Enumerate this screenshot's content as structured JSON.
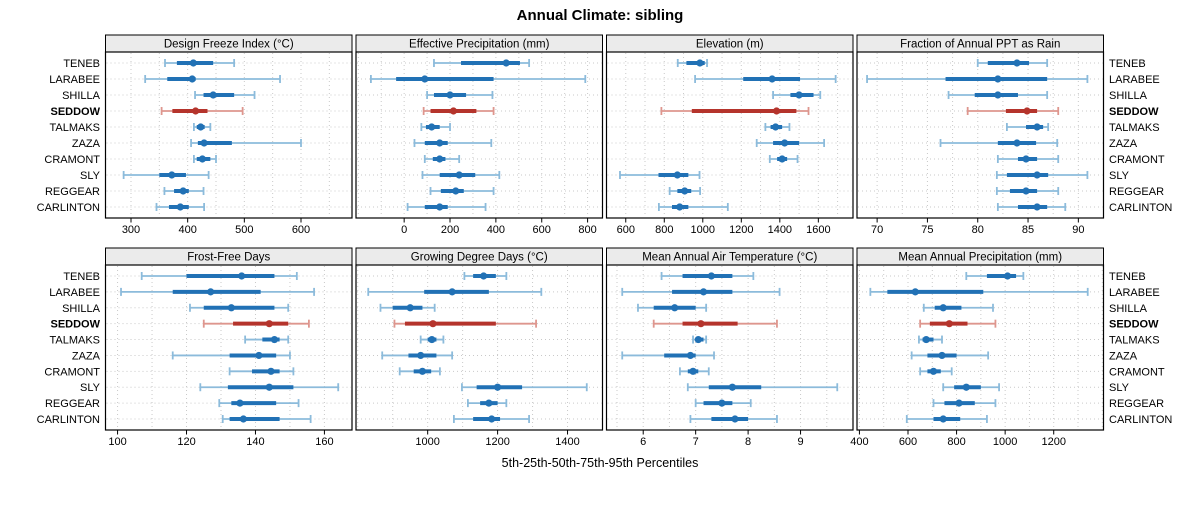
{
  "figure": {
    "title": "Annual Climate: sibling",
    "caption": "5th-25th-50th-75th-95th Percentiles"
  },
  "colors": {
    "series_main": "#2171B5",
    "series_light": "#8CBBDB",
    "highlight_main": "#B5342C",
    "highlight_light": "#DE968E",
    "gridline": "#C9C9C9",
    "strip_fill": "#EBEBEB",
    "panel_border": "#000000",
    "text": "#000000"
  },
  "chart_data": {
    "type": "trellis-percentile-dotplot",
    "percentiles": [
      5,
      25,
      50,
      75,
      95
    ],
    "categories": [
      "TENEB",
      "LARABEE",
      "SHILLA",
      "SEDDOW",
      "TALMAKS",
      "ZAZA",
      "CRAMONT",
      "SLY",
      "REGGEAR",
      "CARLINTON"
    ],
    "highlight_category": "SEDDOW",
    "legend": "none",
    "grid": "dotted",
    "panels": [
      {
        "id": "design-freeze-index",
        "title": "Design Freeze Index (°C)",
        "row": 0,
        "col": 0,
        "xlim": [
          255,
          690
        ],
        "ticks": [
          300,
          400,
          500,
          600
        ],
        "values": {
          "TENEB": [
            360,
            381,
            410,
            445,
            482
          ],
          "LARABEE": [
            325,
            364,
            408,
            414,
            563
          ],
          "SHILLA": [
            413,
            428,
            445,
            482,
            518
          ],
          "SEDDOW": [
            354,
            373,
            414,
            435,
            497
          ],
          "TALMAKS": [
            411,
            416,
            423,
            430,
            440
          ],
          "ZAZA": [
            406,
            418,
            429,
            478,
            600
          ],
          "CRAMONT": [
            411,
            416,
            426,
            440,
            450
          ],
          "SLY": [
            287,
            350,
            372,
            397,
            437
          ],
          "REGGEAR": [
            359,
            376,
            392,
            402,
            428
          ],
          "CARLINTON": [
            345,
            367,
            387,
            402,
            429
          ]
        }
      },
      {
        "id": "effective-precipitation",
        "title": "Effective Precipitation (mm)",
        "row": 0,
        "col": 1,
        "xlim": [
          -210,
          865
        ],
        "ticks": [
          0,
          200,
          400,
          600,
          800
        ],
        "values": {
          "TENEB": [
            130,
            248,
            445,
            505,
            545
          ],
          "LARABEE": [
            -145,
            -35,
            90,
            390,
            790
          ],
          "SHILLA": [
            100,
            130,
            200,
            270,
            385
          ],
          "SEDDOW": [
            85,
            115,
            215,
            315,
            390
          ],
          "TALMAKS": [
            75,
            95,
            120,
            155,
            200
          ],
          "ZAZA": [
            45,
            90,
            155,
            190,
            380
          ],
          "CRAMONT": [
            90,
            125,
            155,
            180,
            240
          ],
          "SLY": [
            80,
            155,
            240,
            310,
            415
          ],
          "REGGEAR": [
            115,
            160,
            225,
            260,
            390
          ],
          "CARLINTON": [
            15,
            90,
            155,
            190,
            355
          ]
        }
      },
      {
        "id": "elevation",
        "title": "Elevation (m)",
        "row": 0,
        "col": 2,
        "xlim": [
          500,
          1780
        ],
        "ticks": [
          600,
          800,
          1000,
          1200,
          1400,
          1600
        ],
        "values": {
          "TENEB": [
            870,
            915,
            985,
            1010,
            1022
          ],
          "LARABEE": [
            960,
            1210,
            1360,
            1505,
            1690
          ],
          "SHILLA": [
            1365,
            1455,
            1500,
            1575,
            1610
          ],
          "SEDDOW": [
            785,
            943,
            1383,
            1486,
            1549
          ],
          "TALMAKS": [
            1325,
            1352,
            1378,
            1412,
            1450
          ],
          "ZAZA": [
            1280,
            1365,
            1425,
            1500,
            1630
          ],
          "CRAMONT": [
            1348,
            1386,
            1412,
            1438,
            1492
          ],
          "SLY": [
            570,
            770,
            868,
            925,
            983
          ],
          "REGGEAR": [
            828,
            868,
            906,
            940,
            986
          ],
          "CARLINTON": [
            772,
            840,
            880,
            925,
            1130
          ]
        }
      },
      {
        "id": "fraction-ppt-rain",
        "title": "Fraction of Annual PPT as Rain",
        "row": 0,
        "col": 3,
        "xlim": [
          68,
          92.5
        ],
        "ticks": [
          70,
          75,
          80,
          85,
          90
        ],
        "values": {
          "TENEB": [
            80,
            81,
            83.9,
            85.1,
            86.9
          ],
          "LARABEE": [
            69,
            76.8,
            82,
            86.9,
            90.9
          ],
          "SHILLA": [
            77.1,
            79.7,
            82,
            84,
            86.9
          ],
          "SEDDOW": [
            79,
            82.8,
            84.9,
            85.9,
            88
          ],
          "TALMAKS": [
            82.9,
            84.8,
            85.9,
            86.5,
            87
          ],
          "ZAZA": [
            76.3,
            82,
            83.9,
            85.8,
            87.9
          ],
          "CRAMONT": [
            82,
            84,
            84.8,
            85.9,
            88
          ],
          "SLY": [
            81.9,
            82.9,
            85.9,
            87,
            90.9
          ],
          "REGGEAR": [
            81.9,
            83.2,
            84.8,
            85.9,
            88
          ],
          "CARLINTON": [
            82,
            84,
            85.9,
            86.9,
            88.7
          ]
        }
      },
      {
        "id": "frost-free-days",
        "title": "Frost-Free Days",
        "row": 1,
        "col": 0,
        "xlim": [
          96.5,
          168
        ],
        "ticks": [
          100,
          120,
          140,
          160
        ],
        "values": {
          "TENEB": [
            107,
            120,
            136,
            145.5,
            152
          ],
          "LARABEE": [
            101,
            116,
            127,
            141.5,
            157
          ],
          "SHILLA": [
            121,
            125,
            133,
            145.5,
            149.5
          ],
          "SEDDOW": [
            125,
            133.5,
            144,
            149.5,
            155.5
          ],
          "TALMAKS": [
            137,
            142,
            145.5,
            147,
            149.5
          ],
          "ZAZA": [
            116,
            132.5,
            141,
            146,
            150
          ],
          "CRAMONT": [
            132.5,
            139,
            144.5,
            147,
            151
          ],
          "SLY": [
            124,
            132,
            144,
            151,
            164
          ],
          "REGGEAR": [
            129.5,
            133,
            135.5,
            146,
            152.5
          ],
          "CARLINTON": [
            130.5,
            132.5,
            136.5,
            147,
            156
          ]
        }
      },
      {
        "id": "growing-degree-days",
        "title": "Growing Degree Days (°C)",
        "row": 1,
        "col": 1,
        "xlim": [
          795,
          1500
        ],
        "ticks": [
          1000,
          1200,
          1400
        ],
        "values": {
          "TENEB": [
            1105,
            1130,
            1160,
            1195,
            1225
          ],
          "LARABEE": [
            830,
            990,
            1070,
            1175,
            1325
          ],
          "SHILLA": [
            865,
            900,
            950,
            985,
            1020
          ],
          "SEDDOW": [
            905,
            935,
            1015,
            1195,
            1310
          ],
          "TALMAKS": [
            980,
            1000,
            1012,
            1025,
            1045
          ],
          "ZAZA": [
            870,
            945,
            980,
            1025,
            1070
          ],
          "CRAMONT": [
            920,
            960,
            985,
            1010,
            1035
          ],
          "SLY": [
            1098,
            1140,
            1200,
            1270,
            1455
          ],
          "REGGEAR": [
            1115,
            1150,
            1175,
            1200,
            1225
          ],
          "CARLINTON": [
            1075,
            1130,
            1183,
            1207,
            1290
          ]
        }
      },
      {
        "id": "mean-annual-air-temperature",
        "title": "Mean Annual Air Temperature (°C)",
        "row": 1,
        "col": 2,
        "xlim": [
          5.3,
          10
        ],
        "ticks": [
          6,
          7,
          8,
          9
        ],
        "values": {
          "TENEB": [
            6.35,
            6.75,
            7.3,
            7.7,
            8.1
          ],
          "LARABEE": [
            5.6,
            6.55,
            7.15,
            7.7,
            8.6
          ],
          "SHILLA": [
            5.9,
            6.2,
            6.6,
            7.0,
            7.2
          ],
          "SEDDOW": [
            6.2,
            6.75,
            7.1,
            7.8,
            8.55
          ],
          "TALMAKS": [
            6.95,
            7.0,
            7.05,
            7.15,
            7.2
          ],
          "ZAZA": [
            5.6,
            6.4,
            6.9,
            7.0,
            7.35
          ],
          "CRAMONT": [
            6.7,
            6.85,
            6.95,
            7.05,
            7.25
          ],
          "SLY": [
            6.85,
            7.25,
            7.7,
            8.25,
            9.7
          ],
          "REGGEAR": [
            7.0,
            7.15,
            7.5,
            7.7,
            8.05
          ],
          "CARLINTON": [
            6.9,
            7.3,
            7.75,
            8.0,
            8.55
          ]
        }
      },
      {
        "id": "mean-annual-precipitation",
        "title": "Mean Annual Precipitation (mm)",
        "row": 1,
        "col": 3,
        "xlim": [
          390,
          1405
        ],
        "ticks": [
          400,
          600,
          800,
          1000,
          1200
        ],
        "values": {
          "TENEB": [
            840,
            925,
            1010,
            1045,
            1075
          ],
          "LARABEE": [
            445,
            515,
            630,
            910,
            1340
          ],
          "SHILLA": [
            665,
            710,
            745,
            820,
            950
          ],
          "SEDDOW": [
            650,
            690,
            770,
            845,
            960
          ],
          "TALMAKS": [
            645,
            660,
            675,
            705,
            740
          ],
          "ZAZA": [
            615,
            680,
            740,
            800,
            930
          ],
          "CRAMONT": [
            650,
            680,
            705,
            735,
            780
          ],
          "SLY": [
            745,
            790,
            840,
            900,
            975
          ],
          "REGGEAR": [
            705,
            750,
            810,
            875,
            960
          ],
          "CARLINTON": [
            595,
            705,
            745,
            815,
            925
          ]
        }
      }
    ]
  }
}
